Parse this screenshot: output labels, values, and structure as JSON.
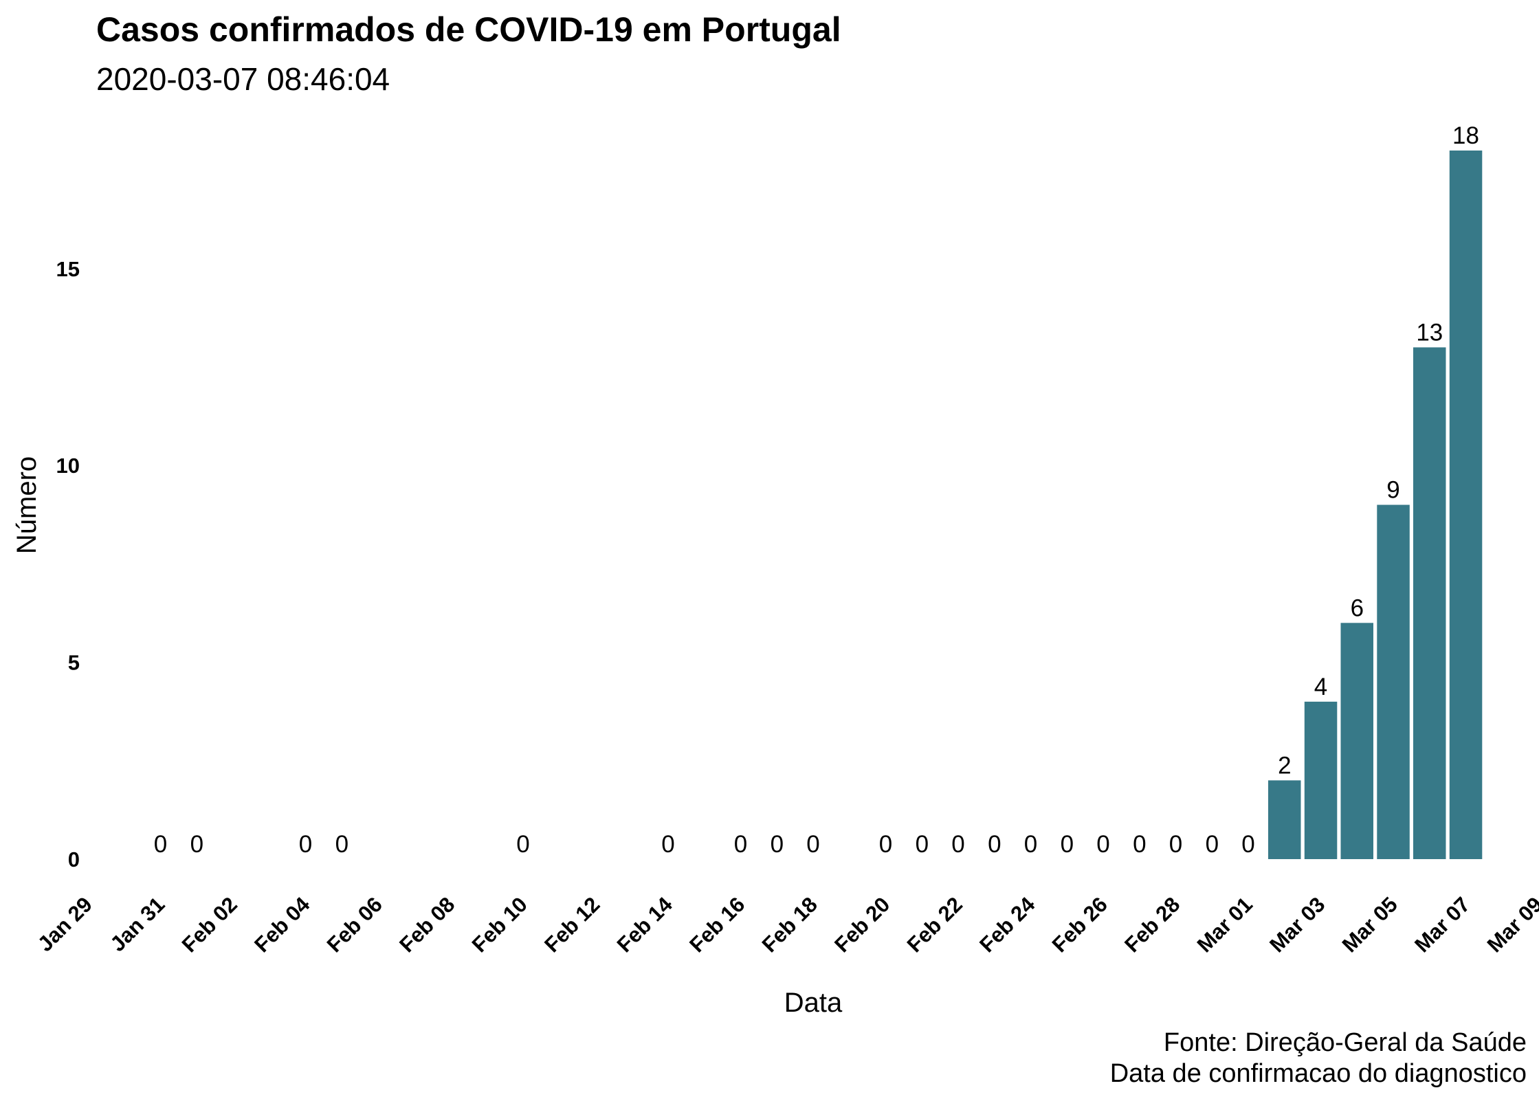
{
  "colors": {
    "bar": "#377988",
    "text": "#000000",
    "background": "#ffffff"
  },
  "chart_data": {
    "type": "bar",
    "title": "Casos confirmados de COVID-19 em Portugal",
    "subtitle": "2020-03-07 08:46:04",
    "xlabel": "Data",
    "ylabel": "Número",
    "caption": [
      "Fonte: Direção-Geral da Saúde",
      "Data de confirmacao do diagnostico"
    ],
    "grid": false,
    "legend": "none",
    "xlim": [
      "2020-01-29",
      "2020-03-09"
    ],
    "ylim": [
      0,
      18
    ],
    "x_ticks": [
      {
        "date": "2020-01-29",
        "label": "Jan 29"
      },
      {
        "date": "2020-01-31",
        "label": "Jan 31"
      },
      {
        "date": "2020-02-02",
        "label": "Feb 02"
      },
      {
        "date": "2020-02-04",
        "label": "Feb 04"
      },
      {
        "date": "2020-02-06",
        "label": "Feb 06"
      },
      {
        "date": "2020-02-08",
        "label": "Feb 08"
      },
      {
        "date": "2020-02-10",
        "label": "Feb 10"
      },
      {
        "date": "2020-02-12",
        "label": "Feb 12"
      },
      {
        "date": "2020-02-14",
        "label": "Feb 14"
      },
      {
        "date": "2020-02-16",
        "label": "Feb 16"
      },
      {
        "date": "2020-02-18",
        "label": "Feb 18"
      },
      {
        "date": "2020-02-20",
        "label": "Feb 20"
      },
      {
        "date": "2020-02-22",
        "label": "Feb 22"
      },
      {
        "date": "2020-02-24",
        "label": "Feb 24"
      },
      {
        "date": "2020-02-26",
        "label": "Feb 26"
      },
      {
        "date": "2020-02-28",
        "label": "Feb 28"
      },
      {
        "date": "2020-03-01",
        "label": "Mar 01"
      },
      {
        "date": "2020-03-03",
        "label": "Mar 03"
      },
      {
        "date": "2020-03-05",
        "label": "Mar 05"
      },
      {
        "date": "2020-03-07",
        "label": "Mar 07"
      },
      {
        "date": "2020-03-09",
        "label": "Mar 09"
      }
    ],
    "y_ticks": [
      0,
      5,
      10,
      15
    ],
    "points": [
      {
        "date": "2020-01-31",
        "value": 0
      },
      {
        "date": "2020-02-01",
        "value": 0
      },
      {
        "date": "2020-02-04",
        "value": 0
      },
      {
        "date": "2020-02-05",
        "value": 0
      },
      {
        "date": "2020-02-10",
        "value": 0
      },
      {
        "date": "2020-02-14",
        "value": 0
      },
      {
        "date": "2020-02-16",
        "value": 0
      },
      {
        "date": "2020-02-17",
        "value": 0
      },
      {
        "date": "2020-02-18",
        "value": 0
      },
      {
        "date": "2020-02-20",
        "value": 0
      },
      {
        "date": "2020-02-21",
        "value": 0
      },
      {
        "date": "2020-02-22",
        "value": 0
      },
      {
        "date": "2020-02-23",
        "value": 0
      },
      {
        "date": "2020-02-24",
        "value": 0
      },
      {
        "date": "2020-02-25",
        "value": 0
      },
      {
        "date": "2020-02-26",
        "value": 0
      },
      {
        "date": "2020-02-27",
        "value": 0
      },
      {
        "date": "2020-02-28",
        "value": 0
      },
      {
        "date": "2020-02-29",
        "value": 0
      },
      {
        "date": "2020-03-01",
        "value": 0
      },
      {
        "date": "2020-03-02",
        "value": 2
      },
      {
        "date": "2020-03-03",
        "value": 4
      },
      {
        "date": "2020-03-04",
        "value": 6
      },
      {
        "date": "2020-03-05",
        "value": 9
      },
      {
        "date": "2020-03-06",
        "value": 13
      },
      {
        "date": "2020-03-07",
        "value": 18
      }
    ]
  }
}
